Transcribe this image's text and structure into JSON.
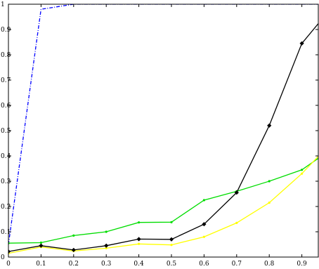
{
  "chart_data": {
    "type": "line",
    "title": "",
    "xlabel": "",
    "ylabel": "",
    "xlim": [
      0,
      1
    ],
    "ylim": [
      0,
      1
    ],
    "x_ticks": [
      "0",
      "0.1",
      "0.2",
      "0.3",
      "0.4",
      "0.5",
      "0.6",
      "0.7",
      "0.8",
      "0.9"
    ],
    "y_ticks": [
      "0",
      "0.1",
      "0.2",
      "0.3",
      "0.4",
      "0.5",
      "0.6",
      "0.7",
      "0.8",
      "0.9",
      "1"
    ],
    "grid": false,
    "legend": "none",
    "x": [
      0,
      0.1,
      0.2,
      0.3,
      0.4,
      0.5,
      0.6,
      0.7,
      0.8,
      0.9,
      1.0
    ],
    "series": [
      {
        "color": "#0000ff",
        "line_style": "dash-dot",
        "marker": "none",
        "x": [
          0,
          0.1,
          0.2,
          0.3,
          0.4,
          0.5,
          0.6,
          0.7,
          0.8,
          0.9,
          1.0
        ],
        "values": [
          0.05,
          0.98,
          1.0,
          1.0,
          1.0,
          1.0,
          1.0,
          1.0,
          1.0,
          1.0,
          1.0
        ]
      },
      {
        "color": "#00dd00",
        "line_style": "solid",
        "marker": "dot",
        "x": [
          0,
          0.1,
          0.2,
          0.3,
          0.4,
          0.5,
          0.6,
          0.7,
          0.8,
          0.9,
          1.0
        ],
        "values": [
          0.055,
          0.057,
          0.085,
          0.1,
          0.137,
          0.138,
          0.225,
          0.26,
          0.3,
          0.345,
          0.435
        ]
      },
      {
        "color": "#ffff00",
        "line_style": "solid",
        "marker": "dot",
        "x": [
          0,
          0.1,
          0.2,
          0.3,
          0.4,
          0.5,
          0.6,
          0.7,
          0.8,
          0.9,
          1.0
        ],
        "values": [
          0.015,
          0.04,
          0.024,
          0.035,
          0.052,
          0.048,
          0.08,
          0.135,
          0.215,
          0.33,
          0.465
        ]
      },
      {
        "color": "#000000",
        "line_style": "solid",
        "marker": "diamond",
        "x": [
          0,
          0.1,
          0.2,
          0.3,
          0.4,
          0.5,
          0.6,
          0.7,
          0.8,
          0.9,
          1.0
        ],
        "values": [
          0.022,
          0.045,
          0.028,
          0.045,
          0.071,
          0.07,
          0.13,
          0.255,
          0.52,
          0.845,
          1.0
        ]
      }
    ]
  }
}
